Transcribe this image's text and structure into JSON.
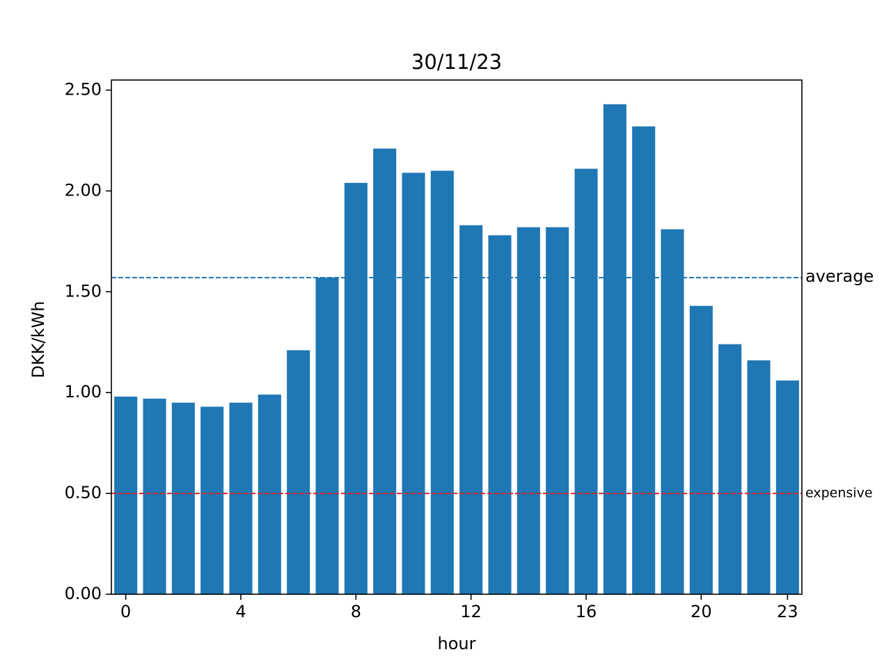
{
  "chart_data": {
    "type": "bar",
    "title": "30/11/23",
    "xlabel": "hour",
    "ylabel": "DKK/kWh",
    "x": [
      0,
      1,
      2,
      3,
      4,
      5,
      6,
      7,
      8,
      9,
      10,
      11,
      12,
      13,
      14,
      15,
      16,
      17,
      18,
      19,
      20,
      21,
      22,
      23
    ],
    "values": [
      0.98,
      0.97,
      0.95,
      0.93,
      0.95,
      0.99,
      1.21,
      1.57,
      2.04,
      2.21,
      2.09,
      2.1,
      1.83,
      1.78,
      1.82,
      1.82,
      2.11,
      2.43,
      2.32,
      1.81,
      1.43,
      1.24,
      1.16,
      1.06
    ],
    "xticks": [
      0,
      4,
      8,
      12,
      16,
      20,
      23
    ],
    "yticks": [
      "0.00",
      "0.50",
      "1.00",
      "1.50",
      "2.00",
      "2.50"
    ],
    "xlim": [
      -0.5,
      23.5
    ],
    "ylim": [
      0,
      2.55
    ],
    "grid": false,
    "bar_color": "#1f77b4",
    "reference_lines": [
      {
        "label": "average",
        "value": 1.57,
        "color": "#1f77b4",
        "style": "dashed"
      },
      {
        "label": "expensive",
        "value": 0.5,
        "color": "#d62728",
        "style": "dashed"
      }
    ]
  }
}
